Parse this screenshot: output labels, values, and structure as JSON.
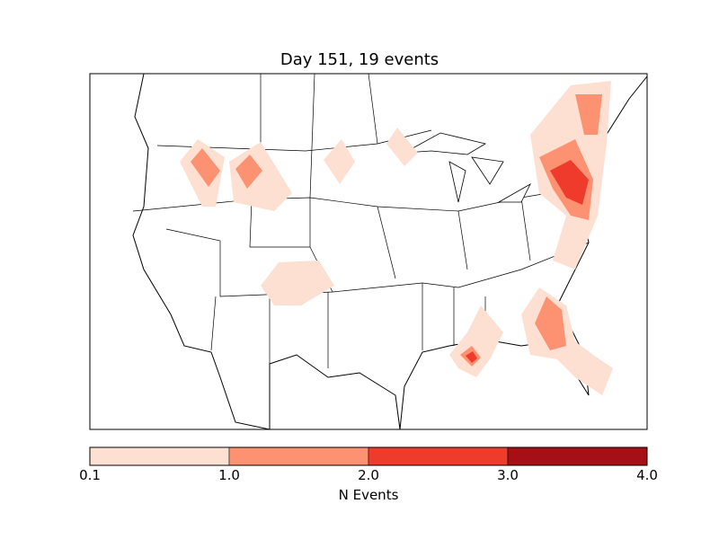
{
  "title": "Day 151, 19 events",
  "colorbar": {
    "label": "N Events",
    "ticks": [
      "0.1",
      "1.0",
      "2.0",
      "3.0",
      "4.0"
    ],
    "bins": [
      {
        "range": [
          0.1,
          1.0
        ],
        "color": "#fee0d2"
      },
      {
        "range": [
          1.0,
          2.0
        ],
        "color": "#fc9272"
      },
      {
        "range": [
          2.0,
          3.0
        ],
        "color": "#ef3b2c"
      },
      {
        "range": [
          3.0,
          4.0
        ],
        "color": "#a50f15"
      }
    ]
  }
}
